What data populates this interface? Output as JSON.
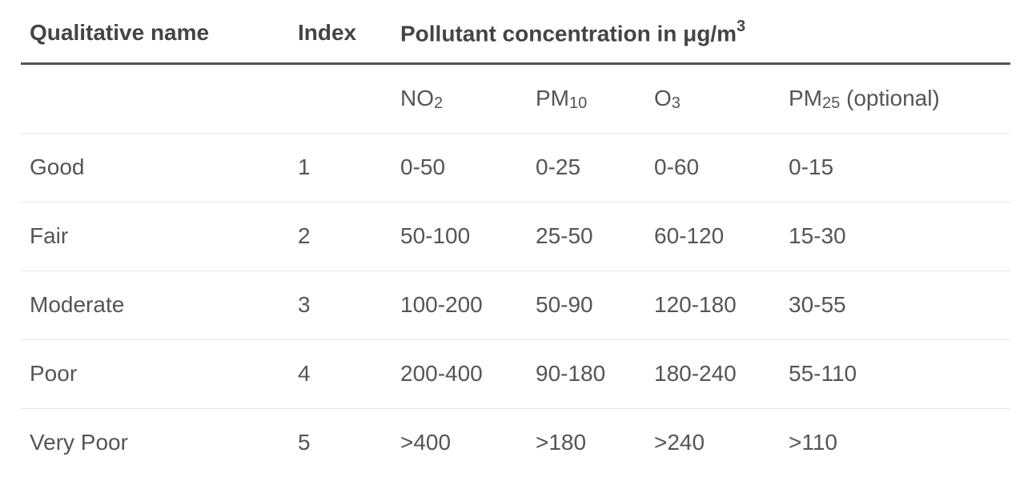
{
  "headers": {
    "qualitative_name": "Qualitative name",
    "index": "Index",
    "pollutant_concentration": "Pollutant concentration in μg/m",
    "unit_superscript": "3"
  },
  "pollutants": [
    {
      "base": "NO",
      "sub": "2",
      "suffix": ""
    },
    {
      "base": "PM",
      "sub": "10",
      "suffix": ""
    },
    {
      "base": "O",
      "sub": "3",
      "suffix": ""
    },
    {
      "base": "PM",
      "sub": "25",
      "suffix": " (optional)"
    }
  ],
  "rows": [
    {
      "name": "Good",
      "index": "1",
      "no2": "0-50",
      "pm10": "0-25",
      "o3": "0-60",
      "pm25": "0-15"
    },
    {
      "name": "Fair",
      "index": "2",
      "no2": "50-100",
      "pm10": "25-50",
      "o3": "60-120",
      "pm25": "15-30"
    },
    {
      "name": "Moderate",
      "index": "3",
      "no2": "100-200",
      "pm10": "50-90",
      "o3": "120-180",
      "pm25": "30-55"
    },
    {
      "name": "Poor",
      "index": "4",
      "no2": "200-400",
      "pm10": "90-180",
      "o3": "180-240",
      "pm25": "55-110"
    },
    {
      "name": "Very Poor",
      "index": "5",
      "no2": ">400",
      "pm10": ">180",
      "o3": ">240",
      "pm25": ">110"
    }
  ]
}
